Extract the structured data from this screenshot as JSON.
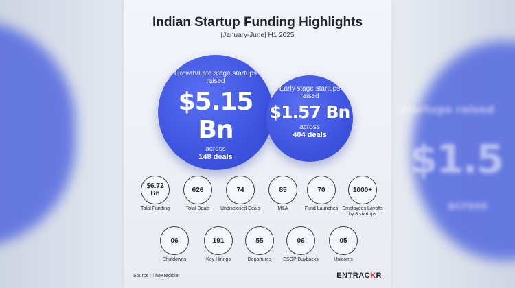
{
  "header": {
    "title": "Indian Startup Funding Highlights",
    "subtitle": "[January-June] H1 2025"
  },
  "growth": {
    "label": "Growth/Late stage startups raised",
    "amount": "$5.15 Bn",
    "across": "across",
    "deals": "148 deals"
  },
  "early": {
    "label": "Early stage startups raised",
    "amount": "$1.57 Bn",
    "across": "across",
    "deals": "404 deals"
  },
  "stats_row1": [
    {
      "value": "$6.72 Bn",
      "caption": "Total Funding"
    },
    {
      "value": "626",
      "caption": "Total Deals"
    },
    {
      "value": "74",
      "caption": "Undisclosed Deals"
    },
    {
      "value": "85",
      "caption": "M&A"
    },
    {
      "value": "70",
      "caption": "Fund Launches"
    },
    {
      "value": "1000+",
      "caption": "Employees Layoffs by 8 startups"
    }
  ],
  "stats_row2": [
    {
      "value": "06",
      "caption": "Shutdowns"
    },
    {
      "value": "191",
      "caption": "Key Hirings"
    },
    {
      "value": "55",
      "caption": "Departures"
    },
    {
      "value": "06",
      "caption": "ESOP Buybacks"
    },
    {
      "value": "05",
      "caption": "Unicorns"
    }
  ],
  "footer": {
    "source": "Source : TheKredible",
    "brand_a": "ENTRAC",
    "brand_r": "K",
    "brand_b": "R"
  },
  "background": {
    "text_top": "startups raised",
    "text_amount": "$1.5",
    "text_bottom": "across"
  },
  "colors": {
    "accent_blue": "#3d54e0",
    "brand_red": "#d6202a"
  }
}
